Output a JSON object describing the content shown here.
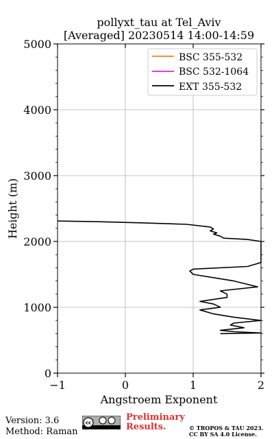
{
  "chart_data": {
    "type": "line",
    "title": "pollyxt_tau at Tel_Aviv",
    "subtitle": "[Averaged] 20230514 14:00-14:59",
    "xlabel": "Angstroem Exponent",
    "ylabel": "Height (m)",
    "xlim": [
      -1,
      2
    ],
    "ylim": [
      0,
      5000
    ],
    "xticks": [
      "−1",
      "0",
      "1",
      "2"
    ],
    "yticks": [
      "0",
      "1000",
      "2000",
      "3000",
      "4000",
      "5000"
    ],
    "grid": true,
    "legend_position": "top-right",
    "series": [
      {
        "name": "BSC 355-532",
        "color": "#ff7f0e",
        "points": []
      },
      {
        "name": "BSC 532-1064",
        "color": "#e020e0",
        "points": []
      },
      {
        "name": "EXT 355-532",
        "color": "#000000",
        "points": [
          [
            1.4,
            600
          ],
          [
            2.0,
            610
          ],
          [
            1.6,
            630
          ],
          [
            1.4,
            650
          ],
          [
            1.75,
            690
          ],
          [
            1.55,
            730
          ],
          [
            1.6,
            760
          ],
          [
            2.0,
            800
          ],
          [
            1.6,
            850
          ],
          [
            1.3,
            900
          ],
          [
            1.1,
            960
          ],
          [
            1.4,
            1000
          ],
          [
            1.3,
            1050
          ],
          [
            1.1,
            1090
          ],
          [
            1.5,
            1150
          ],
          [
            1.5,
            1200
          ],
          [
            1.4,
            1250
          ],
          [
            1.95,
            1310
          ],
          [
            1.6,
            1400
          ],
          [
            1.3,
            1450
          ],
          [
            1.0,
            1500
          ],
          [
            0.95,
            1550
          ],
          [
            1.0,
            1580
          ],
          [
            1.8,
            1620
          ],
          [
            1.9,
            1650
          ],
          [
            2.0,
            1680
          ],
          [
            2.0,
            2000
          ],
          [
            1.8,
            2030
          ],
          [
            1.45,
            2050
          ],
          [
            1.4,
            2080
          ],
          [
            1.3,
            2110
          ],
          [
            1.35,
            2130
          ],
          [
            1.25,
            2160
          ],
          [
            1.3,
            2190
          ],
          [
            1.25,
            2220
          ],
          [
            0.9,
            2260
          ],
          [
            0.3,
            2280
          ],
          [
            -0.4,
            2300
          ],
          [
            -1.0,
            2310
          ]
        ]
      }
    ]
  },
  "footer": {
    "version": "Version: 3.6",
    "method": "Method: Raman",
    "preliminary_line1": "Preliminary",
    "preliminary_line2": "Results.",
    "copyright_line1": "© TROPOS & TAU 2023.",
    "copyright_line2": "CC BY SA 4.0 License."
  }
}
